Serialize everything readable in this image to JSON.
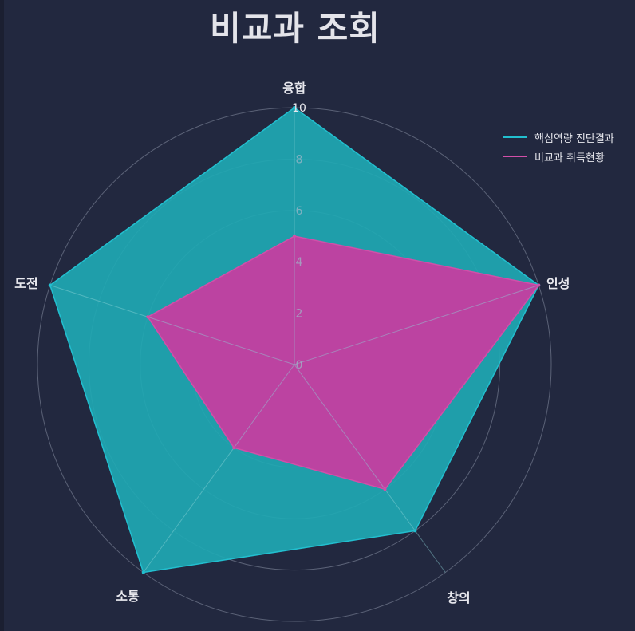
{
  "title": "비교과 조회",
  "chart_data": {
    "type": "radar",
    "title": "비교과 조회",
    "axes": [
      "융합",
      "인성",
      "창의",
      "소통",
      "도전"
    ],
    "rlim": [
      0,
      10
    ],
    "ticks": [
      "0",
      "2",
      "4",
      "6",
      "8",
      "10"
    ],
    "legend_position": "top-right",
    "series": [
      {
        "name": "핵심역량 진단결과",
        "values": [
          10,
          10,
          8,
          10,
          10
        ],
        "color": "#22bfcf",
        "fill": "#1fa8b3"
      },
      {
        "name": "비교과 취득현황",
        "values": [
          5,
          10,
          6,
          4,
          6
        ],
        "color": "#d24fa9",
        "fill": "#c53ea0"
      }
    ]
  }
}
